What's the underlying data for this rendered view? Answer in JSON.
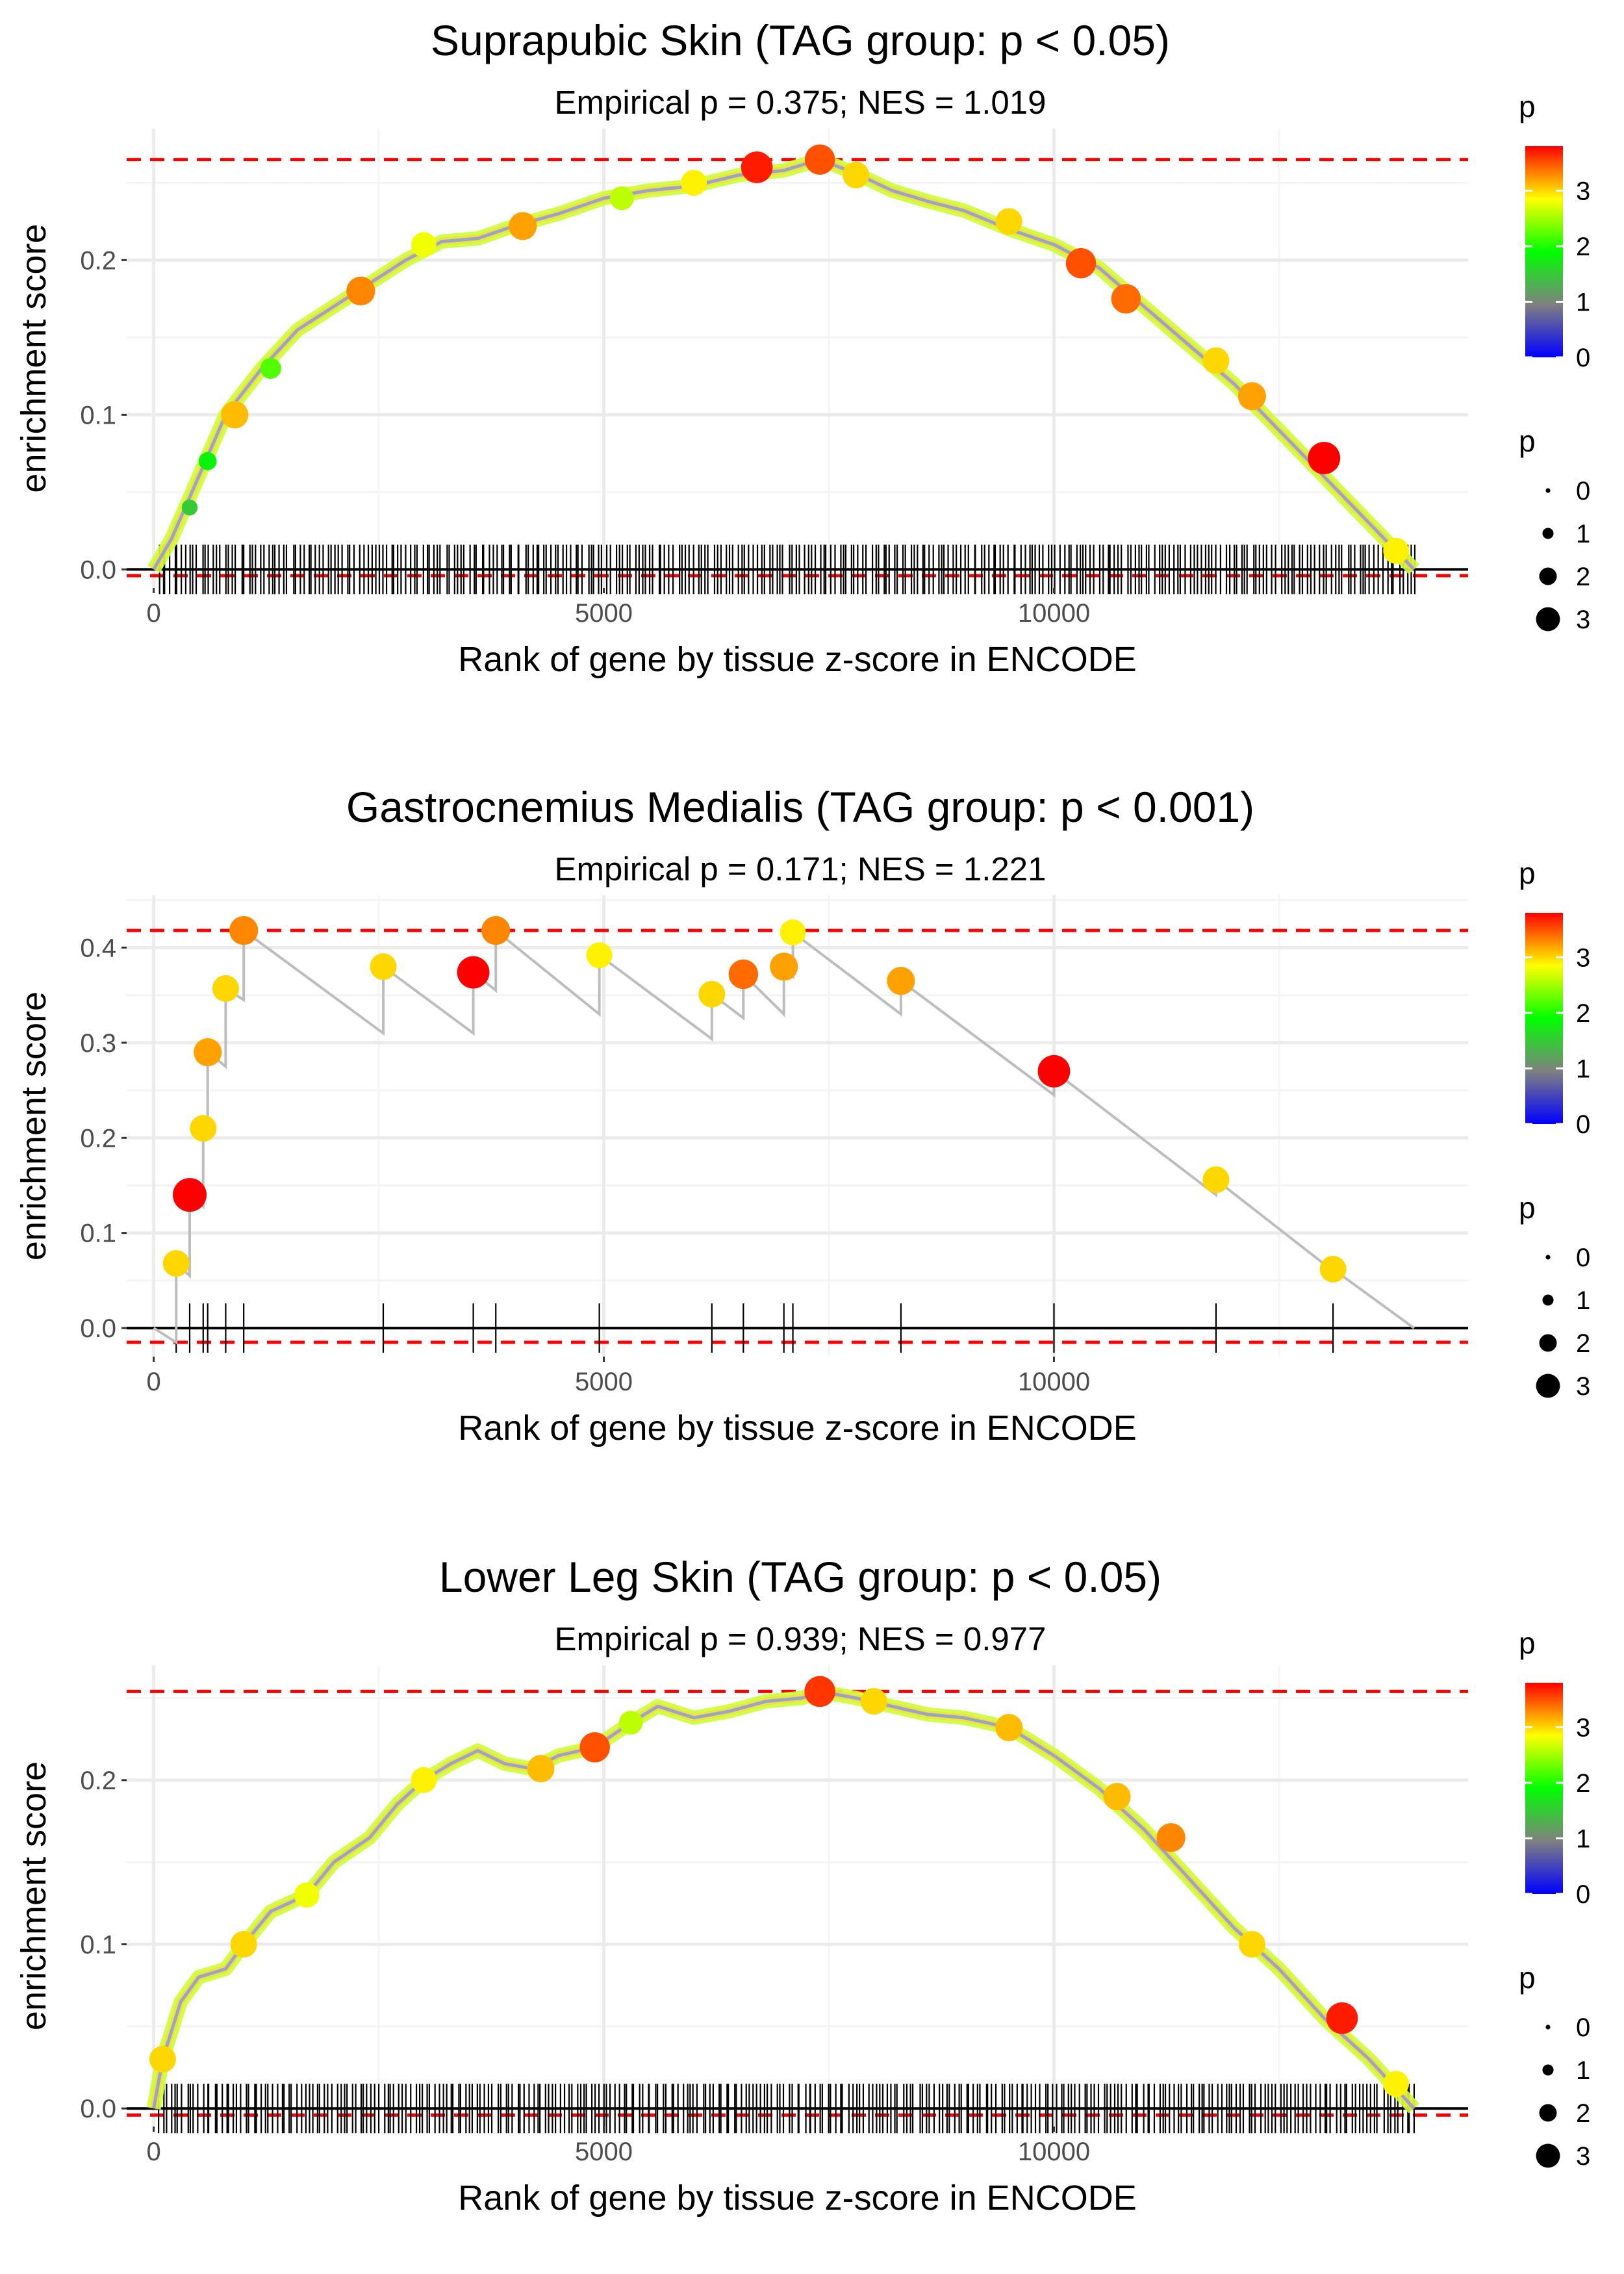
{
  "chart_data": [
    {
      "type": "line",
      "title": "Suprapubic Skin (TAG group: p < 0.05)",
      "subtitle": "Empirical p = 0.375; NES = 1.019",
      "xlabel": "Rank of gene by tissue z-score in ENCODE",
      "ylabel": "enrichment score",
      "xlim": [
        -300,
        14600
      ],
      "ylim": [
        -0.012,
        0.285
      ],
      "x_ticks": [
        0,
        5000,
        10000
      ],
      "x_tick_labels": [
        "0",
        "5000",
        "10000"
      ],
      "y_ticks": [
        0.0,
        0.1,
        0.2
      ],
      "y_tick_labels": [
        "0.0",
        "0.1",
        "0.2"
      ],
      "max_es": 0.265,
      "min_es": -0.004,
      "curve": {
        "x": [
          0,
          200,
          500,
          800,
          1200,
          1600,
          2000,
          2400,
          2800,
          3200,
          3600,
          4000,
          4500,
          5000,
          5500,
          6000,
          6500,
          7000,
          7400,
          7800,
          8200,
          8600,
          9000,
          9500,
          10000,
          10500,
          11000,
          11500,
          12000,
          12500,
          13000,
          13500,
          14000
        ],
        "y": [
          0.0,
          0.02,
          0.06,
          0.1,
          0.13,
          0.155,
          0.17,
          0.185,
          0.2,
          0.212,
          0.214,
          0.222,
          0.23,
          0.24,
          0.245,
          0.248,
          0.255,
          0.258,
          0.265,
          0.256,
          0.245,
          0.238,
          0.232,
          0.22,
          0.21,
          0.195,
          0.17,
          0.145,
          0.12,
          0.09,
          0.06,
          0.03,
          0.0
        ]
      },
      "points": [
        {
          "x": 400,
          "y": 0.04,
          "p": 1.5
        },
        {
          "x": 600,
          "y": 0.07,
          "p": 1.8
        },
        {
          "x": 900,
          "y": 0.1,
          "p": 3.1
        },
        {
          "x": 1300,
          "y": 0.13,
          "p": 2.2
        },
        {
          "x": 2300,
          "y": 0.18,
          "p": 3.3
        },
        {
          "x": 3000,
          "y": 0.21,
          "p": 2.8
        },
        {
          "x": 4100,
          "y": 0.222,
          "p": 3.2
        },
        {
          "x": 5200,
          "y": 0.24,
          "p": 2.6
        },
        {
          "x": 6000,
          "y": 0.25,
          "p": 2.9
        },
        {
          "x": 6700,
          "y": 0.26,
          "p": 3.7
        },
        {
          "x": 7400,
          "y": 0.265,
          "p": 3.5
        },
        {
          "x": 7800,
          "y": 0.255,
          "p": 3.0
        },
        {
          "x": 9500,
          "y": 0.225,
          "p": 3.0
        },
        {
          "x": 10300,
          "y": 0.198,
          "p": 3.5
        },
        {
          "x": 10800,
          "y": 0.175,
          "p": 3.4
        },
        {
          "x": 11800,
          "y": 0.135,
          "p": 3.0
        },
        {
          "x": 12200,
          "y": 0.112,
          "p": 3.2
        },
        {
          "x": 13000,
          "y": 0.072,
          "p": 3.8
        },
        {
          "x": 13800,
          "y": 0.012,
          "p": 2.9
        }
      ],
      "rug": {
        "type": "dense",
        "count": 320,
        "from": 50,
        "to": 14000
      }
    },
    {
      "type": "line",
      "title": "Gastrocnemius Medialis (TAG group: p < 0.001)",
      "subtitle": "Empirical p = 0.171; NES = 1.221",
      "xlabel": "Rank of gene by tissue z-score in ENCODE",
      "ylabel": "enrichment score",
      "xlim": [
        -300,
        14600
      ],
      "ylim": [
        -0.03,
        0.455
      ],
      "x_ticks": [
        0,
        5000,
        10000
      ],
      "x_tick_labels": [
        "0",
        "5000",
        "10000"
      ],
      "y_ticks": [
        0.0,
        0.1,
        0.2,
        0.3,
        0.4
      ],
      "y_tick_labels": [
        "0.0",
        "0.1",
        "0.2",
        "0.3",
        "0.4"
      ],
      "max_es": 0.418,
      "min_es": -0.015,
      "curve": {
        "x": [
          0,
          250,
          250,
          400,
          400,
          550,
          550,
          600,
          600,
          800,
          800,
          1000,
          1000,
          2550,
          2550,
          3550,
          3550,
          3800,
          3800,
          4950,
          4950,
          6200,
          6200,
          6550,
          6550,
          7000,
          7000,
          7100,
          7100,
          8300,
          8300,
          10000,
          10000,
          11800,
          11800,
          13100,
          13100,
          14000
        ],
        "y": [
          0.0,
          -0.015,
          0.068,
          0.055,
          0.14,
          0.128,
          0.21,
          0.205,
          0.29,
          0.275,
          0.357,
          0.345,
          0.418,
          0.31,
          0.38,
          0.31,
          0.374,
          0.355,
          0.418,
          0.33,
          0.392,
          0.304,
          0.351,
          0.326,
          0.372,
          0.33,
          0.38,
          0.37,
          0.416,
          0.33,
          0.365,
          0.245,
          0.27,
          0.14,
          0.156,
          0.06,
          0.062,
          0.0
        ]
      },
      "points": [
        {
          "x": 250,
          "y": 0.068,
          "p": 3.0
        },
        {
          "x": 400,
          "y": 0.14,
          "p": 4.0
        },
        {
          "x": 550,
          "y": 0.21,
          "p": 3.0
        },
        {
          "x": 600,
          "y": 0.29,
          "p": 3.2
        },
        {
          "x": 800,
          "y": 0.357,
          "p": 3.0
        },
        {
          "x": 1000,
          "y": 0.418,
          "p": 3.3
        },
        {
          "x": 2550,
          "y": 0.38,
          "p": 3.0
        },
        {
          "x": 3550,
          "y": 0.374,
          "p": 3.8
        },
        {
          "x": 3800,
          "y": 0.418,
          "p": 3.3
        },
        {
          "x": 4950,
          "y": 0.392,
          "p": 2.9
        },
        {
          "x": 6200,
          "y": 0.351,
          "p": 3.0
        },
        {
          "x": 6550,
          "y": 0.372,
          "p": 3.4
        },
        {
          "x": 7000,
          "y": 0.38,
          "p": 3.2
        },
        {
          "x": 7100,
          "y": 0.416,
          "p": 2.9
        },
        {
          "x": 8300,
          "y": 0.365,
          "p": 3.2
        },
        {
          "x": 10000,
          "y": 0.27,
          "p": 3.8
        },
        {
          "x": 11800,
          "y": 0.156,
          "p": 3.0
        },
        {
          "x": 13100,
          "y": 0.062,
          "p": 3.0
        }
      ],
      "rug": {
        "type": "list",
        "x": [
          250,
          400,
          550,
          600,
          800,
          1000,
          2550,
          3550,
          3800,
          4950,
          6200,
          6550,
          7000,
          7100,
          8300,
          10000,
          11800,
          13100
        ]
      }
    },
    {
      "type": "line",
      "title": "Lower Leg Skin (TAG group: p < 0.05)",
      "subtitle": "Empirical p = 0.939; NES = 0.977",
      "xlabel": "Rank of gene by tissue z-score in ENCODE",
      "ylabel": "enrichment score",
      "xlim": [
        -300,
        14600
      ],
      "ylim": [
        -0.011,
        0.27
      ],
      "x_ticks": [
        0,
        5000,
        10000
      ],
      "x_tick_labels": [
        "0",
        "5000",
        "10000"
      ],
      "y_ticks": [
        0.0,
        0.1,
        0.2
      ],
      "y_tick_labels": [
        "0.0",
        "0.1",
        "0.2"
      ],
      "max_es": 0.254,
      "min_es": -0.004,
      "curve": {
        "x": [
          0,
          100,
          300,
          500,
          800,
          1000,
          1300,
          1700,
          2000,
          2400,
          2700,
          3000,
          3300,
          3600,
          3900,
          4200,
          4500,
          4900,
          5300,
          5600,
          6000,
          6400,
          6800,
          7200,
          7400,
          7800,
          8200,
          8600,
          9000,
          9500,
          10000,
          10500,
          11000,
          11500,
          12000,
          12500,
          13000,
          13500,
          14000
        ],
        "y": [
          0.0,
          0.03,
          0.065,
          0.08,
          0.085,
          0.1,
          0.12,
          0.13,
          0.15,
          0.165,
          0.185,
          0.2,
          0.21,
          0.218,
          0.21,
          0.207,
          0.215,
          0.22,
          0.235,
          0.245,
          0.238,
          0.242,
          0.248,
          0.25,
          0.254,
          0.25,
          0.245,
          0.24,
          0.238,
          0.232,
          0.215,
          0.195,
          0.17,
          0.14,
          0.11,
          0.085,
          0.055,
          0.03,
          0.0
        ]
      },
      "points": [
        {
          "x": 100,
          "y": 0.03,
          "p": 3.0
        },
        {
          "x": 1000,
          "y": 0.1,
          "p": 3.0
        },
        {
          "x": 1700,
          "y": 0.13,
          "p": 2.8
        },
        {
          "x": 3000,
          "y": 0.2,
          "p": 2.9
        },
        {
          "x": 4300,
          "y": 0.207,
          "p": 3.1
        },
        {
          "x": 4900,
          "y": 0.22,
          "p": 3.5
        },
        {
          "x": 5300,
          "y": 0.235,
          "p": 2.6
        },
        {
          "x": 7400,
          "y": 0.254,
          "p": 3.6
        },
        {
          "x": 8000,
          "y": 0.248,
          "p": 3.0
        },
        {
          "x": 9500,
          "y": 0.232,
          "p": 3.1
        },
        {
          "x": 10700,
          "y": 0.19,
          "p": 3.1
        },
        {
          "x": 11300,
          "y": 0.165,
          "p": 3.3
        },
        {
          "x": 12200,
          "y": 0.1,
          "p": 3.0
        },
        {
          "x": 13200,
          "y": 0.055,
          "p": 3.7
        },
        {
          "x": 13800,
          "y": 0.015,
          "p": 2.9
        }
      ],
      "rug": {
        "type": "dense",
        "count": 320,
        "from": 60,
        "to": 14000
      }
    }
  ],
  "legend": {
    "color_title": "p",
    "color_ticks": [
      "3",
      "2",
      "1",
      "0"
    ],
    "color_tick_values": [
      3,
      2,
      1,
      0
    ],
    "color_max": 3.8,
    "size_title": "p",
    "size_labels": [
      "0",
      "1",
      "2",
      "3"
    ]
  },
  "colors": {
    "reference_line": "#ff0000",
    "curve": "#bdbdbd",
    "rug": "#000000",
    "gradient": [
      "#0000ff",
      "#808080",
      "#00ff00",
      "#ffff00",
      "#ff0000"
    ]
  }
}
